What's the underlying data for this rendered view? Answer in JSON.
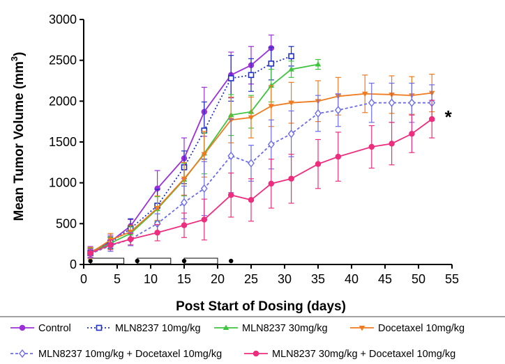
{
  "chart_data": {
    "type": "line",
    "xlabel": "Post Start of Dosing (days)",
    "ylabel_main": "Mean Tumor Volume (mm",
    "ylabel_sup": "3",
    "ylabel_close": ")",
    "xlim": [
      0,
      55
    ],
    "ylim": [
      0,
      3000
    ],
    "xticks": [
      0,
      5,
      10,
      15,
      20,
      25,
      30,
      35,
      40,
      45,
      50,
      55
    ],
    "yticks": [
      0,
      500,
      1000,
      1500,
      2000,
      2500,
      3000
    ],
    "grid": false,
    "legend_position": "bottom",
    "annotation": "*",
    "annotation_x": 53.2,
    "annotation_y": 1780,
    "dosing_dots_x": [
      1,
      8,
      15,
      22
    ],
    "dosing_bars": [
      [
        1,
        6
      ],
      [
        8,
        13
      ],
      [
        15,
        20
      ]
    ],
    "series": [
      {
        "name": "Control",
        "color": "#9b30d9",
        "marker": "circle-filled",
        "dash": "solid",
        "x": [
          1,
          4,
          7,
          11,
          15,
          18,
          22,
          25,
          28
        ],
        "y": [
          150,
          280,
          470,
          930,
          1300,
          1870,
          2320,
          2440,
          2650
        ],
        "err": [
          70,
          80,
          80,
          220,
          250,
          300,
          280,
          230,
          160
        ]
      },
      {
        "name": "MLN8237 10mg/kg",
        "color": "#1f2fc4",
        "marker": "square-open",
        "dash": "dotted",
        "x": [
          1,
          4,
          7,
          11,
          15,
          18,
          22,
          25,
          28,
          31
        ],
        "y": [
          140,
          270,
          440,
          720,
          1190,
          1640,
          2280,
          2320,
          2460,
          2550
        ],
        "err": [
          60,
          70,
          120,
          200,
          200,
          350,
          280,
          200,
          200,
          120
        ]
      },
      {
        "name": "MLN8237 30mg/kg",
        "color": "#3ec43e",
        "marker": "triangle-up-filled",
        "dash": "solid",
        "x": [
          1,
          4,
          7,
          11,
          15,
          18,
          22,
          25,
          28,
          31,
          35
        ],
        "y": [
          140,
          260,
          380,
          680,
          1040,
          1360,
          1830,
          1870,
          2190,
          2390,
          2450
        ],
        "err": [
          60,
          70,
          80,
          150,
          200,
          250,
          250,
          200,
          200,
          100,
          60
        ]
      },
      {
        "name": "Docetaxel 10mg/kg",
        "color": "#f07a1e",
        "marker": "triangle-down-filled",
        "dash": "solid",
        "x": [
          1,
          4,
          7,
          11,
          15,
          18,
          22,
          25,
          28,
          31,
          35,
          38,
          42,
          46,
          49,
          52
        ],
        "y": [
          140,
          300,
          400,
          690,
          1050,
          1350,
          1770,
          1800,
          1940,
          1980,
          2000,
          2060,
          2090,
          2080,
          2070,
          2100
        ],
        "err": [
          70,
          80,
          80,
          150,
          200,
          280,
          280,
          250,
          250,
          250,
          250,
          230,
          230,
          230,
          230,
          230
        ]
      },
      {
        "name": "MLN8237 10mg/kg + Docetaxel 10mg/kg",
        "color": "#6b6bef",
        "marker": "diamond-open",
        "dash": "dashed",
        "x": [
          1,
          4,
          7,
          11,
          15,
          18,
          22,
          25,
          28,
          31,
          35,
          38,
          43,
          46,
          49,
          52
        ],
        "y": [
          130,
          230,
          310,
          500,
          760,
          930,
          1330,
          1240,
          1470,
          1600,
          1850,
          1890,
          1980,
          1980,
          1980,
          1980
        ],
        "err": [
          50,
          70,
          80,
          120,
          200,
          330,
          450,
          220,
          300,
          280,
          220,
          200,
          240,
          240,
          240,
          220
        ]
      },
      {
        "name": "MLN8237 30mg/kg + Docetaxel 10mg/kg",
        "color": "#ee2d7e",
        "marker": "circle-filled",
        "dash": "solid",
        "x": [
          1,
          4,
          7,
          11,
          15,
          18,
          22,
          25,
          28,
          31,
          35,
          38,
          43,
          46,
          49,
          52
        ],
        "y": [
          140,
          240,
          310,
          390,
          480,
          550,
          850,
          790,
          990,
          1050,
          1230,
          1320,
          1440,
          1480,
          1600,
          1780
        ],
        "err": [
          50,
          60,
          70,
          100,
          150,
          250,
          270,
          260,
          300,
          300,
          300,
          300,
          260,
          260,
          230,
          230
        ]
      }
    ]
  }
}
